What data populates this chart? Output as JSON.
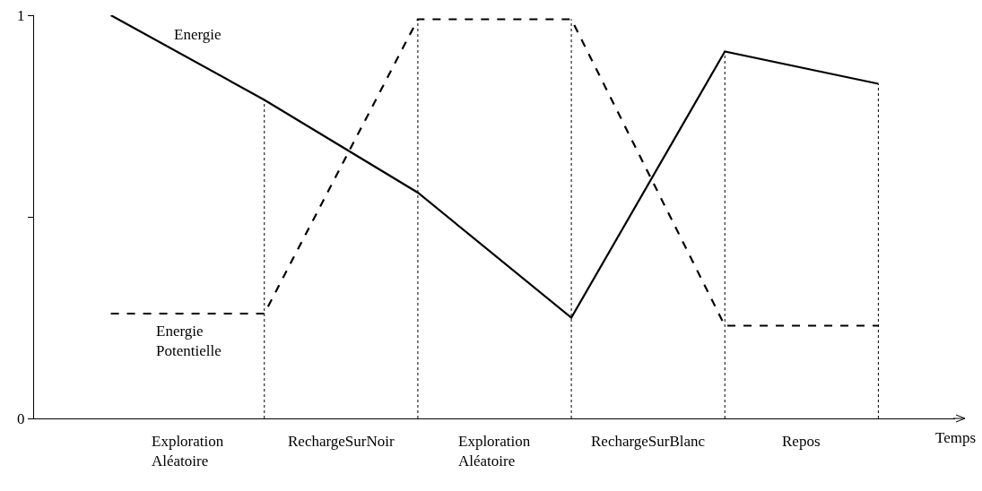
{
  "chart_data": {
    "type": "line",
    "categories": [
      null,
      null,
      null,
      null,
      null,
      null
    ],
    "ylim": [
      0,
      1
    ],
    "yticks": [
      0,
      {
        "value": 0.5,
        "label": null
      },
      1
    ],
    "tick_labels": "y",
    "grid": "x",
    "legend": false,
    "marker": "none",
    "series": [
      {
        "name": "Energie",
        "color": "#000000",
        "line_style": "solid",
        "values": [
          1.0,
          0.79,
          0.56,
          0.25,
          0.91,
          0.83
        ]
      },
      {
        "name": "Energie\nPotentielle",
        "color": "#000000",
        "line_style": "dashed",
        "values": [
          0.26,
          0.26,
          0.99,
          0.99,
          0.23,
          0.23
        ]
      }
    ],
    "annotations": [
      "Exploration\nAléatoire",
      "RechargeSurNoir",
      "Exploration\nAléatoire",
      "RechargeSurBlanc",
      "Repos",
      "Temps"
    ]
  }
}
